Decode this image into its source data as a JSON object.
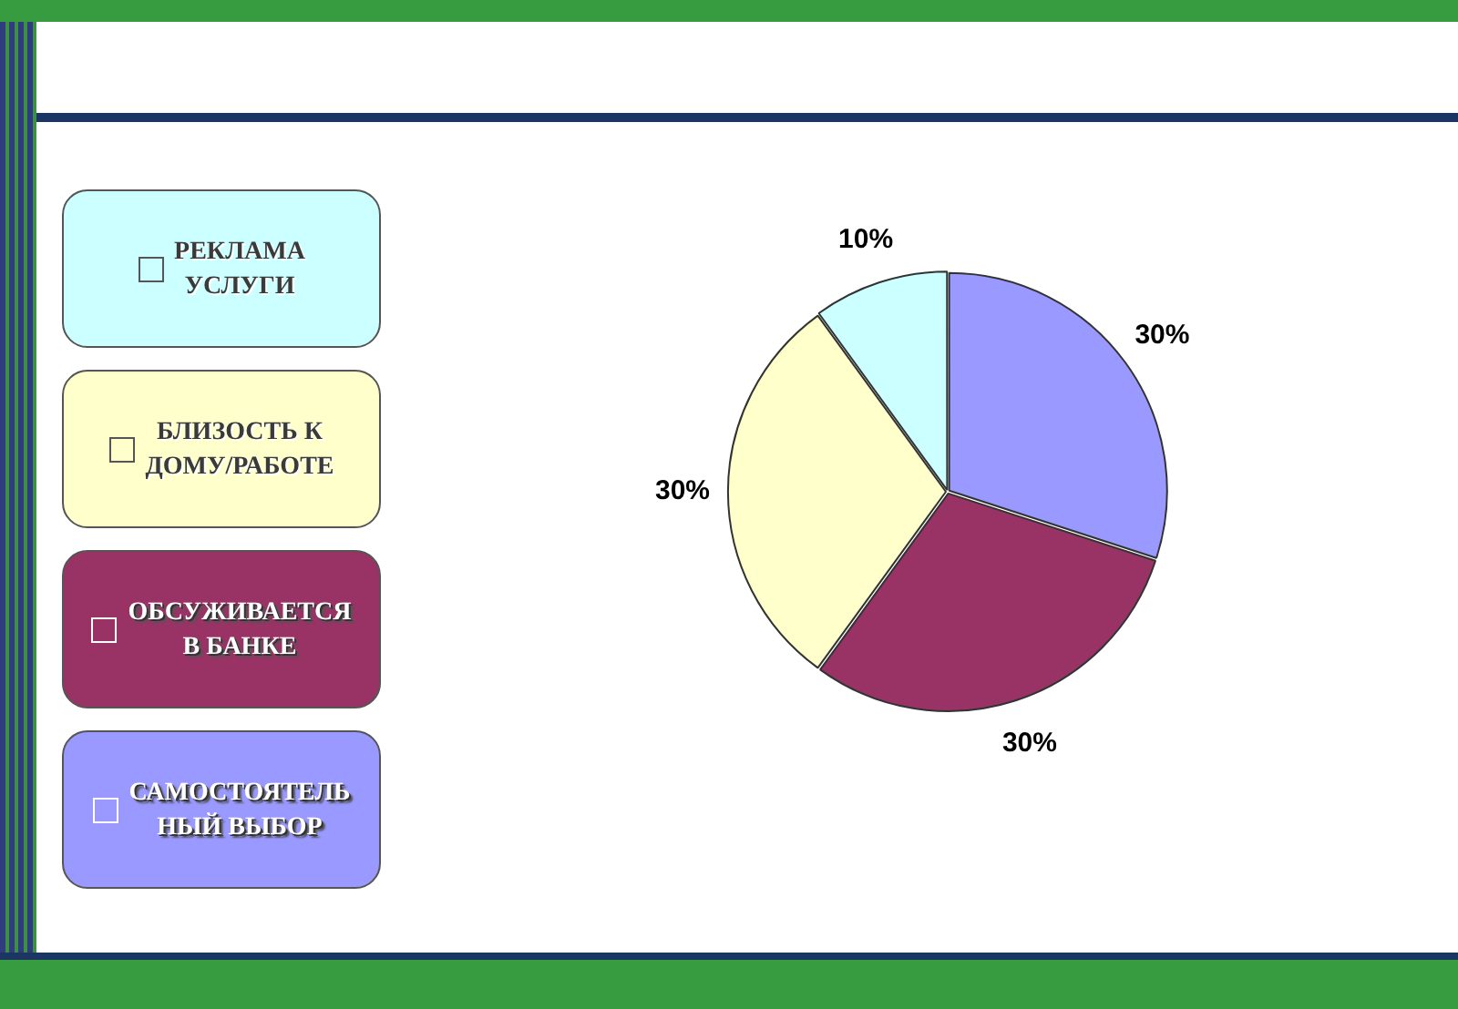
{
  "chart_data": {
    "type": "pie",
    "categories": [
      "САМОСТОЯТЕЛЬ\nНЫЙ ВЫБОР",
      "ОБСУЖИВАЕТСЯ\nВ БАНКЕ",
      "БЛИЗОСТЬ К\nДОМУ/РАБОТЕ",
      "РЕКЛАМА\nУСЛУГИ"
    ],
    "values": [
      30,
      30,
      30,
      10
    ],
    "colors": [
      "#9999ff",
      "#993366",
      "#ffffcc",
      "#ccffff"
    ],
    "value_labels": [
      "30%",
      "30%",
      "30%",
      "10%"
    ],
    "legend": "left"
  }
}
